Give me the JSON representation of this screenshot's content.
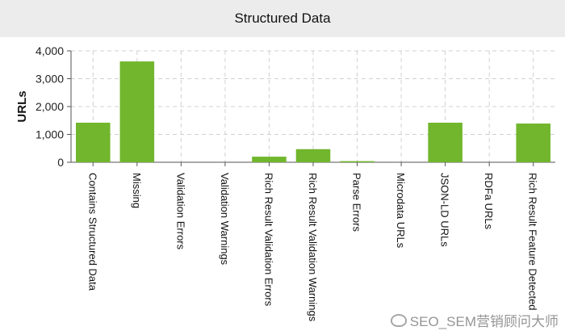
{
  "chart_data": {
    "type": "bar",
    "title": "Structured Data",
    "ylabel": "URLs",
    "xlabel": "",
    "ylim": [
      0,
      4000
    ],
    "yticks": [
      0,
      1000,
      2000,
      3000,
      4000
    ],
    "ytick_labels": [
      "0",
      "1,000",
      "2,000",
      "3,000",
      "4,000"
    ],
    "grid": true,
    "bar_color": "#71b62c",
    "categories": [
      "Contains Structured Data",
      "Missing",
      "Validation Errors",
      "Validation Warnings",
      "Rich Result Validation Errors",
      "Rich Result Validation Warnings",
      "Parse Errors",
      "Microdata URLs",
      "JSON-LD URLs",
      "RDFa URLs",
      "Rich Result Feature Detected"
    ],
    "values": [
      1420,
      3620,
      0,
      0,
      200,
      470,
      40,
      0,
      1420,
      0,
      1390
    ]
  },
  "watermark": {
    "text": "SEO_SEM营销顾问大师",
    "icon": "weibo-icon"
  }
}
